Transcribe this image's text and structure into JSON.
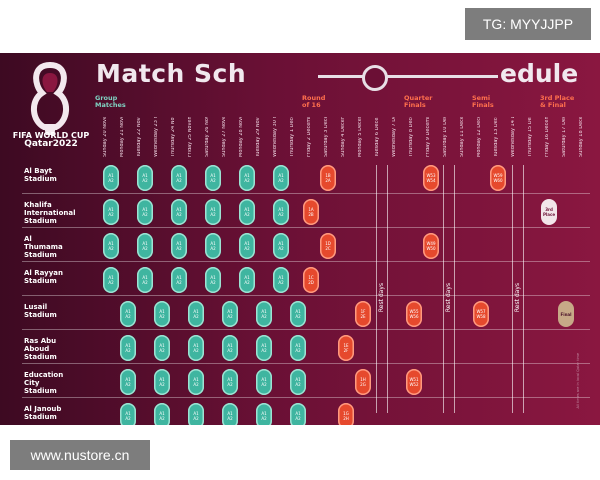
{
  "watermarks": {
    "top": "TG: MYYJJPP",
    "bottom": "www.nustore.cn"
  },
  "poster": {
    "title_start": "Match Sch",
    "title_end": "edule",
    "logo_line1": "FIFA WORLD CUP",
    "logo_line2": "Qatar2022"
  },
  "stages": [
    {
      "label": "Group\nMatches",
      "color": "green"
    },
    {
      "label": "Round\nof 16",
      "color": "red"
    },
    {
      "label": "Quarter\nFinals",
      "color": "red"
    },
    {
      "label": "Semi\nFinals",
      "color": "red"
    },
    {
      "label": "3rd Place\n& Final",
      "color": "red"
    }
  ],
  "dates": [
    "Sunday 20 November",
    "Monday 21 November",
    "Tuesday 22 November",
    "Wednesday 23 November",
    "Thursday 24 November",
    "Friday 25 November",
    "Saturday 26 November",
    "Sunday 27 November",
    "Monday 28 November",
    "Tuesday 29 November",
    "Wednesday 30 November",
    "Thursday 1 December",
    "Friday 2 December",
    "Saturday 3 December",
    "Sunday 4 December",
    "Monday 5 December",
    "Tuesday 6 December",
    "Wednesday 7 December",
    "Thursday 8 December",
    "Friday 9 December",
    "Saturday 10 December",
    "Sunday 11 December",
    "Monday 12 December",
    "Tuesday 13 December",
    "Wednesday 14 December",
    "Thursday 15 December",
    "Friday 16 December",
    "Saturday 17 December",
    "Sunday 18 December"
  ],
  "stadiums": [
    {
      "name": "Al Bayt\nStadium"
    },
    {
      "name": "Khalifa\nInternational\nStadium"
    },
    {
      "name": "Al\nThumama\nStadium"
    },
    {
      "name": "Al Rayyan\nStadium"
    },
    {
      "name": "Lusail\nStadium"
    },
    {
      "name": "Ras Abu\nAboud\nStadium"
    },
    {
      "name": "Education\nCity\nStadium"
    },
    {
      "name": "Al Janoub\nStadium"
    }
  ],
  "rest_days": [
    {
      "label": "Rest days"
    },
    {
      "label": "Rest days"
    },
    {
      "label": "Rest days"
    }
  ],
  "matches": {
    "group_text": "A1\nA2",
    "r16_codes": [
      "1B\n2A",
      "1A\n2B",
      "1D\n2C",
      "1C\n2D",
      "1F\n2E",
      "1E\n2F",
      "1H\n2G",
      "1G\n2H"
    ],
    "qf_codes": [
      "W53\nW54",
      "W49\nW50",
      "W55\nW56",
      "W51\nW52"
    ],
    "sf_codes": [
      "W59\nW60",
      "W57\nW58"
    ],
    "third_place": "3rd\nPlace",
    "final": "Final"
  },
  "side_note": "All times are in local Qatar time"
}
